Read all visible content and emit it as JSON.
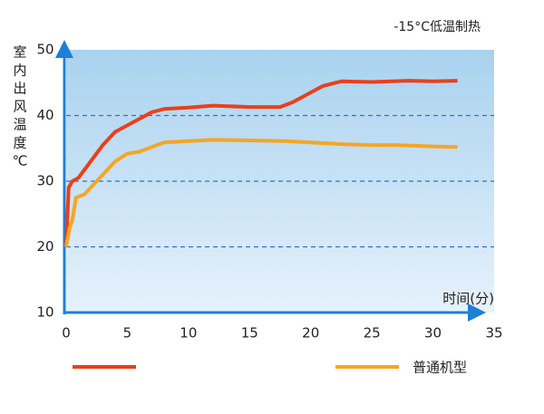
{
  "chart_data": {
    "type": "line",
    "title": "-15°C低温制热",
    "y_label_chars": [
      "室",
      "内",
      "出",
      "风",
      "温",
      "度",
      "℃"
    ],
    "x_label": "时间(分)",
    "xlim": [
      0,
      35
    ],
    "xticks": [
      0,
      5,
      10,
      15,
      20,
      25,
      30,
      35
    ],
    "ylim": [
      10,
      50
    ],
    "yticks": [
      10,
      20,
      30,
      40,
      50
    ],
    "grid": true,
    "series": [
      {
        "name": null,
        "color": "#e8401c",
        "x": [
          0,
          0.2,
          0.5,
          1,
          2,
          3,
          4,
          5,
          6,
          7,
          8,
          10,
          12,
          15,
          17.5,
          18.5,
          19.5,
          20,
          21,
          22.5,
          25,
          28,
          30,
          32
        ],
        "values": [
          20,
          29,
          30,
          30.5,
          33,
          35.5,
          37.5,
          38.5,
          39.5,
          40.5,
          41,
          41.2,
          41.5,
          41.3,
          41.3,
          42,
          43,
          43.5,
          44.5,
          45.2,
          45.1,
          45.3,
          45.2,
          45.3
        ]
      },
      {
        "name": "普通机型",
        "color": "#f5a623",
        "x": [
          0,
          0.3,
          0.5,
          0.8,
          1.5,
          2,
          3,
          4,
          5,
          6,
          7,
          8,
          10,
          12,
          15,
          18,
          20,
          23,
          25,
          27,
          30,
          32
        ],
        "values": [
          20,
          23,
          24,
          27.5,
          28,
          29,
          31,
          33,
          34.2,
          34.5,
          35.2,
          35.9,
          36.1,
          36.3,
          36.2,
          36.1,
          35.9,
          35.6,
          35.5,
          35.5,
          35.3,
          35.2
        ]
      }
    ]
  }
}
